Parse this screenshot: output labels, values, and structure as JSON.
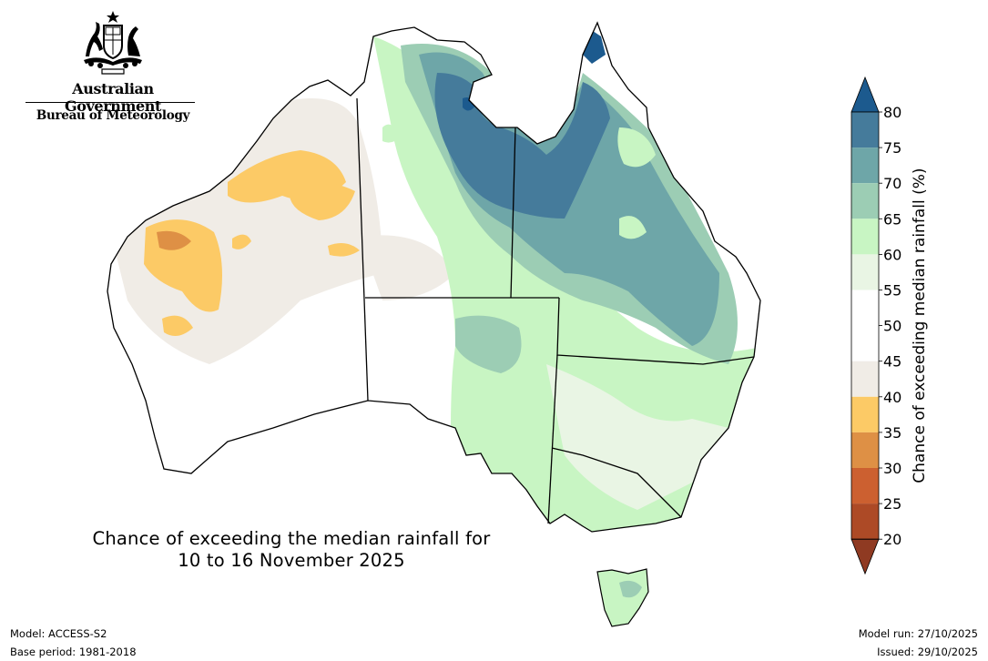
{
  "header": {
    "government": "Australian Government",
    "bureau": "Bureau of Meteorology"
  },
  "map": {
    "title_line1": "Chance of exceeding the median rainfall for",
    "title_line2": "10 to 16 November 2025",
    "region": "Australia"
  },
  "legend": {
    "label": "Chance of exceeding median rainfall (%)",
    "ticks": [
      "20",
      "25",
      "30",
      "35",
      "40",
      "45",
      "50",
      "55",
      "60",
      "65",
      "70",
      "75",
      "80"
    ],
    "bins": [
      {
        "range": "<20",
        "color": "#8f3a22"
      },
      {
        "range": "20-25",
        "color": "#ad4a26"
      },
      {
        "range": "25-30",
        "color": "#cc6030"
      },
      {
        "range": "30-35",
        "color": "#de9045"
      },
      {
        "range": "35-40",
        "color": "#fcca66"
      },
      {
        "range": "40-45",
        "color": "#f0ece6"
      },
      {
        "range": "45-50",
        "color": "#ffffff"
      },
      {
        "range": "50-55",
        "color": "#ffffff"
      },
      {
        "range": "55-60",
        "color": "#e9f5e4"
      },
      {
        "range": "60-65",
        "color": "#c8f5c3"
      },
      {
        "range": "65-70",
        "color": "#9ccdb4"
      },
      {
        "range": "70-75",
        "color": "#6ea6a8"
      },
      {
        "range": "75-80",
        "color": "#457b9b"
      },
      {
        "range": ">80",
        "color": "#1c5a8e"
      }
    ]
  },
  "footer": {
    "model": "Model: ACCESS-S2",
    "base_period": "Base period: 1981-2018",
    "model_run": "Model run: 27/10/2025",
    "issued": "Issued: 29/10/2025"
  }
}
